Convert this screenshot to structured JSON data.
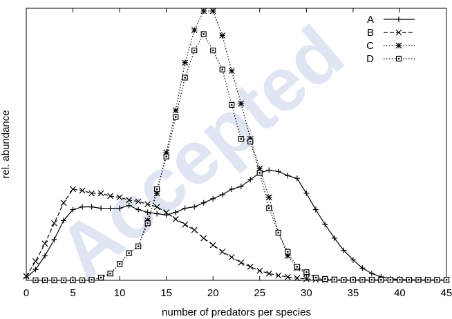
{
  "watermark": "Accepted",
  "chart_data": {
    "type": "line",
    "xlabel": "number of predators per species",
    "ylabel": "rel. abundance",
    "xlim": [
      0,
      45
    ],
    "ylim": [
      0,
      1.0
    ],
    "xticks": [
      "0",
      "5",
      "10",
      "15",
      "20",
      "25",
      "30",
      "35",
      "40",
      "45"
    ],
    "grid": false,
    "legend_position": "top-right",
    "series": [
      {
        "name": "A",
        "style": "solid",
        "marker": "plus",
        "color": "#000000",
        "x": [
          0,
          1,
          2,
          3,
          4,
          5,
          6,
          7,
          8,
          9,
          10,
          11,
          12,
          13,
          14,
          15,
          16,
          17,
          18,
          19,
          20,
          21,
          22,
          23,
          24,
          25,
          26,
          27,
          28,
          29,
          30,
          31,
          32,
          33,
          34,
          35,
          36,
          37,
          38,
          39,
          40,
          41,
          42,
          43,
          44,
          45
        ],
        "y": [
          0.01,
          0.04,
          0.09,
          0.15,
          0.22,
          0.26,
          0.27,
          0.27,
          0.265,
          0.265,
          0.265,
          0.275,
          0.26,
          0.25,
          0.245,
          0.24,
          0.25,
          0.265,
          0.27,
          0.285,
          0.3,
          0.315,
          0.335,
          0.345,
          0.37,
          0.395,
          0.405,
          0.4,
          0.385,
          0.375,
          0.32,
          0.26,
          0.205,
          0.155,
          0.11,
          0.075,
          0.045,
          0.025,
          0.013,
          0.006,
          0.003,
          0.002,
          0.001,
          0.001,
          0.001,
          0.001
        ]
      },
      {
        "name": "B",
        "style": "dashed",
        "marker": "cross",
        "color": "#000000",
        "x": [
          0,
          1,
          2,
          3,
          4,
          5,
          6,
          7,
          8,
          9,
          10,
          11,
          12,
          13,
          14,
          15,
          16,
          17,
          18,
          19,
          20,
          21,
          22,
          23,
          24,
          25,
          26,
          27,
          28,
          29,
          30,
          31,
          32,
          33,
          34,
          35,
          36,
          37,
          38,
          39,
          40,
          41,
          42,
          43,
          44,
          45
        ],
        "y": [
          0.015,
          0.07,
          0.135,
          0.21,
          0.285,
          0.335,
          0.33,
          0.32,
          0.32,
          0.31,
          0.305,
          0.295,
          0.29,
          0.28,
          0.27,
          0.25,
          0.225,
          0.205,
          0.185,
          0.155,
          0.13,
          0.105,
          0.085,
          0.065,
          0.05,
          0.035,
          0.025,
          0.018,
          0.012,
          0.008,
          0.005,
          0.003,
          0.002,
          0.001,
          0.001,
          0.001,
          0.001,
          0.001,
          0.001,
          0.001,
          0.001,
          0.001,
          0.001,
          0.001,
          0.001,
          0.001
        ]
      },
      {
        "name": "C",
        "style": "dotted",
        "marker": "star",
        "color": "#000000",
        "x": [
          1,
          2,
          3,
          4,
          5,
          6,
          7,
          8,
          9,
          10,
          11,
          12,
          13,
          14,
          15,
          16,
          17,
          18,
          19,
          20,
          21,
          22,
          23,
          24,
          25,
          26,
          27,
          28,
          29,
          30,
          31,
          32,
          33,
          34,
          35,
          36,
          37,
          38,
          39,
          40,
          41,
          42,
          43,
          44,
          45
        ],
        "y": [
          0,
          0,
          0,
          0,
          0,
          0,
          0.002,
          0.01,
          0.025,
          0.06,
          0.1,
          0.125,
          0.22,
          0.32,
          0.47,
          0.625,
          0.8,
          0.92,
          0.99,
          0.99,
          0.9,
          0.77,
          0.65,
          0.52,
          0.41,
          0.305,
          0.175,
          0.09,
          0.045,
          0.025,
          0.01,
          0.005,
          0.003,
          0.002,
          0.002,
          0.002,
          0.002,
          0.002,
          0.002,
          0.002,
          0.002,
          0.002,
          0.002,
          0.002,
          0.002
        ]
      },
      {
        "name": "D",
        "style": "dotted",
        "marker": "square",
        "color": "#000000",
        "x": [
          1,
          2,
          3,
          4,
          5,
          6,
          7,
          8,
          9,
          10,
          11,
          12,
          13,
          14,
          15,
          16,
          17,
          18,
          19,
          20,
          21,
          22,
          23,
          24,
          25,
          26,
          27,
          28,
          29,
          30,
          31,
          32,
          33,
          34,
          35,
          36,
          37,
          38,
          39,
          40,
          41,
          42,
          43,
          44,
          45
        ],
        "y": [
          0,
          0,
          0,
          0,
          0,
          0,
          0.002,
          0.01,
          0.025,
          0.06,
          0.1,
          0.125,
          0.21,
          0.335,
          0.455,
          0.6,
          0.745,
          0.845,
          0.905,
          0.845,
          0.775,
          0.645,
          0.52,
          0.51,
          0.395,
          0.265,
          0.175,
          0.105,
          0.05,
          0.03,
          0.01,
          0.005,
          0.003,
          0.002,
          0.002,
          0.002,
          0.002,
          0.002,
          0.002,
          0.002,
          0.002,
          0.002,
          0.002,
          0.002,
          0.002
        ]
      }
    ]
  }
}
